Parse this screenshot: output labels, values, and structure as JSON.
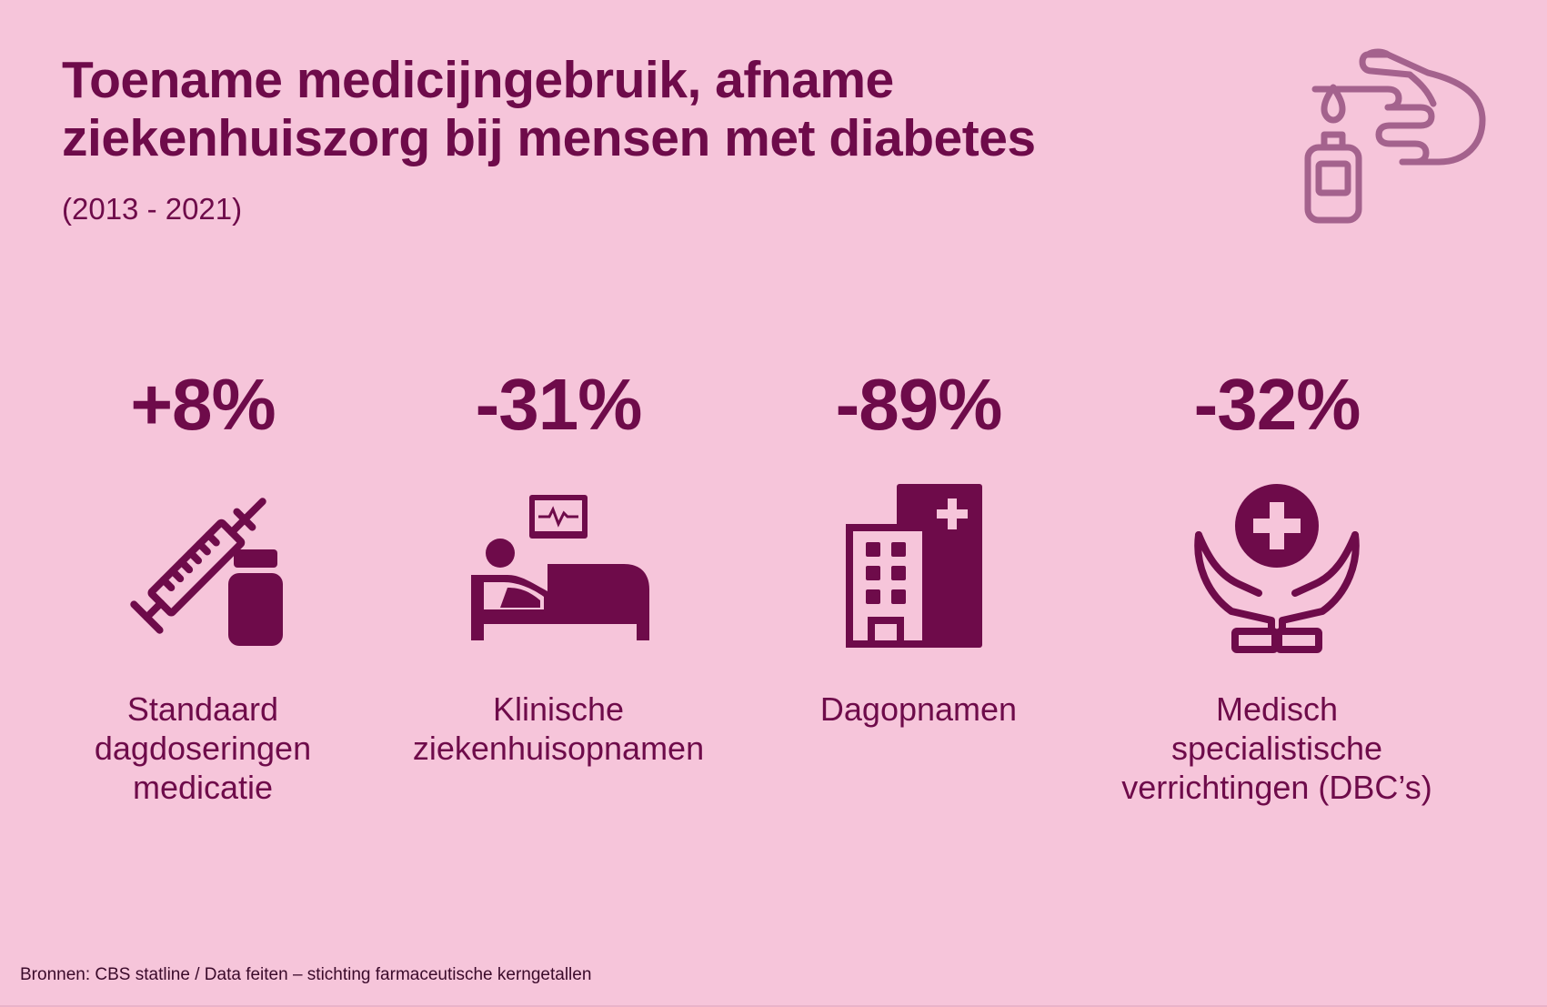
{
  "header": {
    "title_line1": "Toename medicijngebruik, afname",
    "title_line2": "ziekenhuiszorg bij mensen met diabetes",
    "subtitle": "(2013 - 2021)",
    "icon": "glucose-meter-icon"
  },
  "stats": [
    {
      "value": "+8%",
      "icon": "syringe-vial-icon",
      "label_lines": [
        "Standaard",
        "dagdoseringen",
        "medicatie"
      ]
    },
    {
      "value": "-31%",
      "icon": "hospital-bed-icon",
      "label_lines": [
        "Klinische",
        "ziekenhuisopnamen"
      ]
    },
    {
      "value": "-89%",
      "icon": "hospital-building-icon",
      "label_lines": [
        "Dagopnamen"
      ]
    },
    {
      "value": "-32%",
      "icon": "hands-cross-icon",
      "label_lines": [
        "Medisch",
        "specialistische",
        "verrichtingen (DBC’s)"
      ]
    }
  ],
  "footer": {
    "source": "Bronnen: CBS statline / Data feiten – stichting farmaceutische kerngetallen"
  },
  "colors": {
    "background": "#f6c5da",
    "accent": "#6e0b4a",
    "header_icon": "#a4628d"
  }
}
